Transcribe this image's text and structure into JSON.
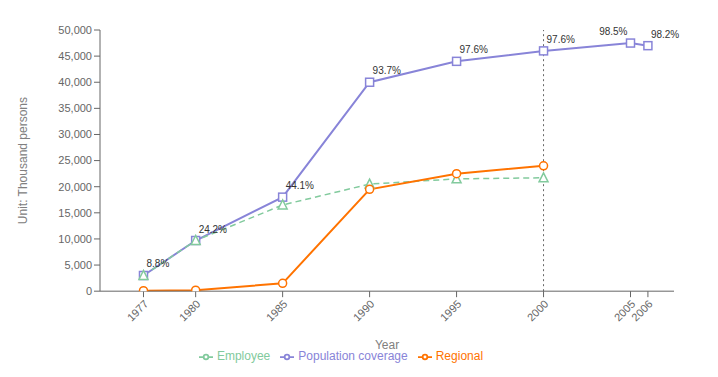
{
  "chart_data": {
    "type": "line",
    "x": [
      1977,
      1980,
      1985,
      1990,
      1995,
      2000,
      2005,
      2006
    ],
    "series": [
      {
        "name": "Population coverage",
        "color": "#8884d8",
        "marker": "square",
        "line_style": "solid",
        "values": [
          3000,
          9700,
          18000,
          40000,
          44000,
          46000,
          47500,
          47000
        ]
      },
      {
        "name": "Employee",
        "color": "#82ca9d",
        "marker": "triangle",
        "line_style": "dashed",
        "values": [
          3000,
          9700,
          16500,
          20500,
          21500,
          21700,
          null,
          null
        ]
      },
      {
        "name": "Regional",
        "color": "#ff7300",
        "marker": "circle",
        "line_style": "solid",
        "values": [
          100,
          200,
          1500,
          19500,
          22500,
          24000,
          null,
          null
        ]
      }
    ],
    "xlabel": "Year",
    "ylabel": "Unit: Thousand persons",
    "xlim": [
      1974.5,
      2007.5
    ],
    "xticks": [
      1977,
      1980,
      1985,
      1990,
      1995,
      2000,
      2005,
      2006
    ],
    "ylim": [
      0,
      50000
    ],
    "yticks": [
      0,
      {
        "value": 5000,
        "label": "5,000"
      },
      {
        "value": 10000,
        "label": "10,000"
      },
      {
        "value": 15000,
        "label": "15,000"
      },
      {
        "value": 20000,
        "label": "20,000"
      },
      {
        "value": 25000,
        "label": "25,000"
      },
      {
        "value": 30000,
        "label": "30,000"
      },
      {
        "value": 35000,
        "label": "35,000"
      },
      {
        "value": 40000,
        "label": "40,000"
      },
      {
        "value": 45000,
        "label": "45,000"
      },
      {
        "value": 50000,
        "label": "50,000"
      }
    ],
    "vlines": [
      2000
    ],
    "annotations": [
      {
        "text": "8.8%",
        "x": 1977,
        "y": 4200
      },
      {
        "text": "24.2%",
        "x": 1980,
        "y": 10800
      },
      {
        "text": "44.1%",
        "x": 1985,
        "y": 19200
      },
      {
        "text": "93.7%",
        "x": 1990,
        "y": 41200
      },
      {
        "text": "97.6%",
        "x": 1995,
        "y": 45300
      },
      {
        "text": "97.6%",
        "x": 2000,
        "y": 47200
      },
      {
        "text": "98.5%",
        "x": 2005,
        "y": 48600
      },
      {
        "text": "98.2%",
        "x": 2006,
        "y": 48100
      }
    ],
    "legend": "bottom",
    "grid": false
  }
}
